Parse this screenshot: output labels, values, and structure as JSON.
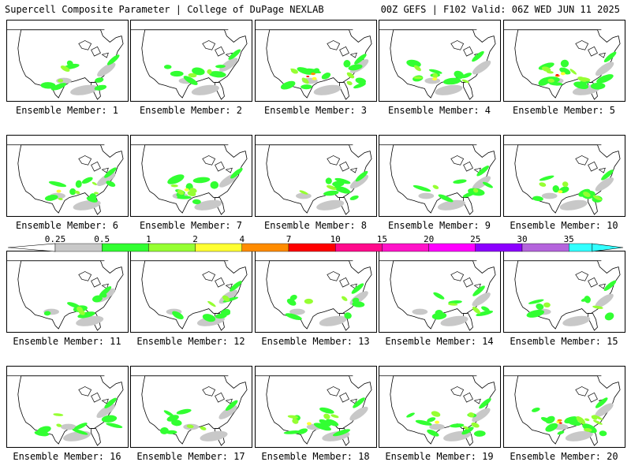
{
  "header": {
    "left": "Supercell Composite Parameter | College of DuPage NEXLAB",
    "right": "00Z GEFS | F102 Valid: 06Z WED JUN 11 2025"
  },
  "colorbar": {
    "labels": [
      "0.25",
      "0.5",
      "1",
      "2",
      "4",
      "7",
      "10",
      "15",
      "20",
      "25",
      "30",
      "35"
    ],
    "colors": [
      "#c8c8c8",
      "#32ff32",
      "#96ff32",
      "#ffff32",
      "#ff8c00",
      "#ff0000",
      "#ff0a8c",
      "#ff14c8",
      "#ff00ff",
      "#8c00ff",
      "#b464dc",
      "#32ffff"
    ]
  },
  "panels": [
    {
      "label": "Ensemble Member: 1",
      "intensity": 1
    },
    {
      "label": "Ensemble Member: 2",
      "intensity": 1
    },
    {
      "label": "Ensemble Member: 3",
      "intensity": 3
    },
    {
      "label": "Ensemble Member: 4",
      "intensity": 2
    },
    {
      "label": "Ensemble Member: 5",
      "intensity": 3
    },
    {
      "label": "Ensemble Member: 6",
      "intensity": 2
    },
    {
      "label": "Ensemble Member: 7",
      "intensity": 2
    },
    {
      "label": "Ensemble Member: 8",
      "intensity": 1
    },
    {
      "label": "Ensemble Member: 9",
      "intensity": 1
    },
    {
      "label": "Ensemble Member: 10",
      "intensity": 2
    },
    {
      "label": "Ensemble Member: 11",
      "intensity": 1
    },
    {
      "label": "Ensemble Member: 12",
      "intensity": 1
    },
    {
      "label": "Ensemble Member: 13",
      "intensity": 1
    },
    {
      "label": "Ensemble Member: 14",
      "intensity": 1
    },
    {
      "label": "Ensemble Member: 15",
      "intensity": 1
    },
    {
      "label": "Ensemble Member: 16",
      "intensity": 1
    },
    {
      "label": "Ensemble Member: 17",
      "intensity": 1
    },
    {
      "label": "Ensemble Member: 18",
      "intensity": 2
    },
    {
      "label": "Ensemble Member: 19",
      "intensity": 2
    },
    {
      "label": "Ensemble Member: 20",
      "intensity": 3
    }
  ]
}
